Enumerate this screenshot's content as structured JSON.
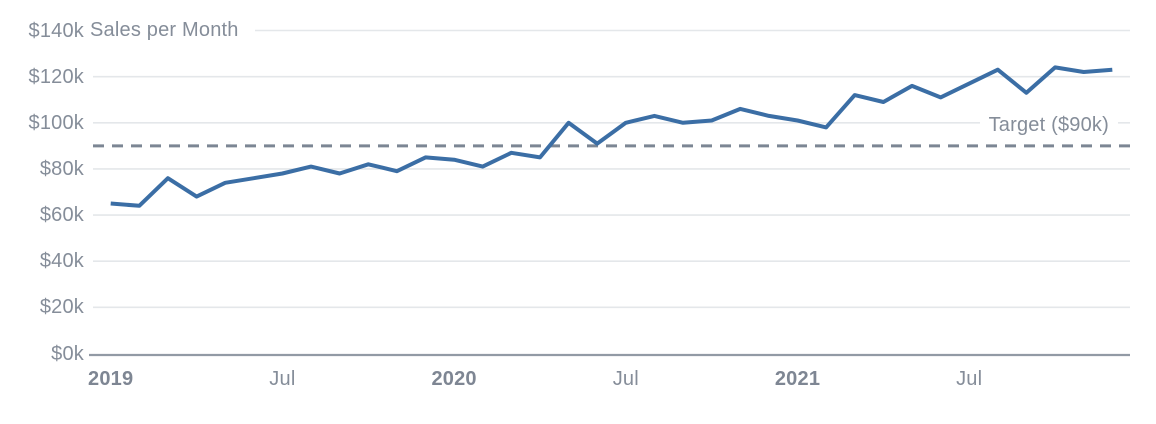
{
  "colors": {
    "line": "#3b6ea5",
    "target_line": "#7c8694",
    "grid": "#e4e7ea",
    "axis": "#929aa5",
    "text": "#858d99",
    "background": "#ffffff"
  },
  "chart_data": {
    "type": "line",
    "title": "Sales per Month",
    "x": [
      "2019-01",
      "2019-02",
      "2019-03",
      "2019-04",
      "2019-05",
      "2019-06",
      "2019-07",
      "2019-08",
      "2019-09",
      "2019-10",
      "2019-11",
      "2019-12",
      "2020-01",
      "2020-02",
      "2020-03",
      "2020-04",
      "2020-05",
      "2020-06",
      "2020-07",
      "2020-08",
      "2020-09",
      "2020-10",
      "2020-11",
      "2020-12",
      "2021-01",
      "2021-02",
      "2021-03",
      "2021-04",
      "2021-05",
      "2021-06",
      "2021-07",
      "2021-08",
      "2021-09",
      "2021-10",
      "2021-11",
      "2021-12"
    ],
    "series": [
      {
        "name": "Sales",
        "unit": "$k",
        "values": [
          65,
          64,
          76,
          68,
          74,
          76,
          78,
          81,
          78,
          82,
          79,
          85,
          84,
          81,
          87,
          85,
          100,
          91,
          100,
          103,
          100,
          101,
          106,
          103,
          101,
          98,
          112,
          109,
          116,
          111,
          117,
          123,
          113,
          124,
          122,
          123
        ]
      }
    ],
    "target_line": {
      "value": 90,
      "label": "Target ($90k)",
      "style": "dashed"
    },
    "ylim": [
      0,
      140
    ],
    "y_tick_step": 20,
    "y_ticks": [
      "$0k",
      "$20k",
      "$40k",
      "$60k",
      "$80k",
      "$100k",
      "$120k",
      "$140k"
    ],
    "x_ticks": [
      {
        "label": "2019",
        "index": 0,
        "emphasis": true
      },
      {
        "label": "Jul",
        "index": 6,
        "emphasis": false
      },
      {
        "label": "2020",
        "index": 12,
        "emphasis": true
      },
      {
        "label": "Jul",
        "index": 18,
        "emphasis": false
      },
      {
        "label": "2021",
        "index": 24,
        "emphasis": true
      },
      {
        "label": "Jul",
        "index": 30,
        "emphasis": false
      }
    ],
    "grid": true,
    "legend": "none",
    "xlabel": "",
    "ylabel": ""
  }
}
